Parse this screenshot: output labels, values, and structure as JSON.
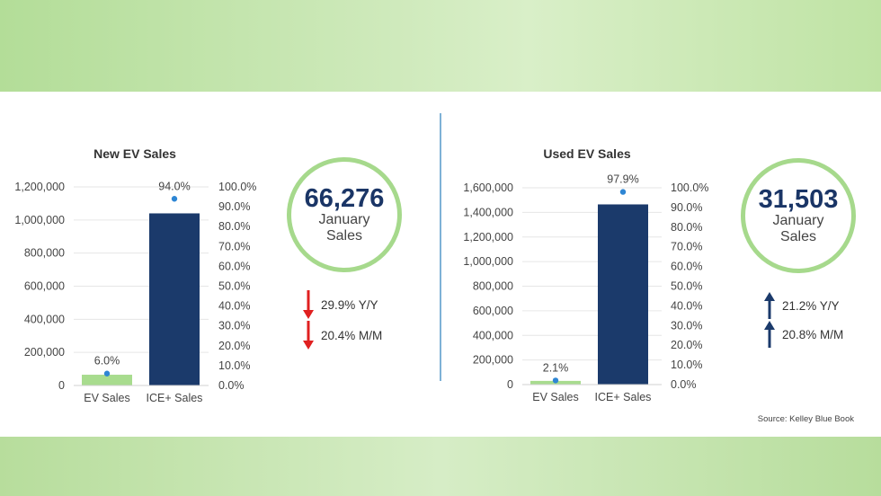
{
  "chart_data": [
    {
      "type": "bar",
      "title": "New EV Sales",
      "categories": [
        "EV Sales",
        "ICE+ Sales"
      ],
      "values": [
        65000,
        1040000
      ],
      "share_values": [
        6.0,
        94.0
      ],
      "share_labels": [
        "6.0%",
        "94.0%"
      ],
      "ylim": [
        0,
        1200000
      ],
      "y_ticks": [
        0,
        200000,
        400000,
        600000,
        800000,
        1000000,
        1200000
      ],
      "y_tick_labels": [
        "0",
        "200,000",
        "400,000",
        "600,000",
        "800,000",
        "1,000,000",
        "1,200,000"
      ],
      "y2lim": [
        0,
        100
      ],
      "y2_tick_labels": [
        "0.0%",
        "10.0%",
        "20.0%",
        "30.0%",
        "40.0%",
        "50.0%",
        "60.0%",
        "70.0%",
        "80.0%",
        "90.0%",
        "100.0%"
      ],
      "bar_colors": [
        "#a8dc8e",
        "#1b3a6b"
      ],
      "marker_color": "#2e86d4",
      "grid": true
    },
    {
      "type": "bar",
      "title": "Used EV Sales",
      "categories": [
        "EV Sales",
        "ICE+ Sales"
      ],
      "values": [
        30000,
        1465000
      ],
      "share_values": [
        2.1,
        97.9
      ],
      "share_labels": [
        "2.1%",
        "97.9%"
      ],
      "ylim": [
        0,
        1600000
      ],
      "y_ticks": [
        0,
        200000,
        400000,
        600000,
        800000,
        1000000,
        1200000,
        1400000,
        1600000
      ],
      "y_tick_labels": [
        "0",
        "200,000",
        "400,000",
        "600,000",
        "800,000",
        "1,000,000",
        "1,200,000",
        "1,400,000",
        "1,600,000"
      ],
      "y2lim": [
        0,
        100
      ],
      "y2_tick_labels": [
        "0.0%",
        "10.0%",
        "20.0%",
        "30.0%",
        "40.0%",
        "50.0%",
        "60.0%",
        "70.0%",
        "80.0%",
        "90.0%",
        "100.0%"
      ],
      "bar_colors": [
        "#a8dc8e",
        "#1b3a6b"
      ],
      "marker_color": "#2e86d4",
      "grid": true
    }
  ],
  "kpis": [
    {
      "number": "66,276",
      "line1": "January",
      "line2": "Sales",
      "changes": [
        {
          "direction": "down",
          "text": "29.9% Y/Y",
          "icon": "arrow-down-icon",
          "color": "#e02020"
        },
        {
          "direction": "down",
          "text": "20.4% M/M",
          "icon": "arrow-down-icon",
          "color": "#e02020"
        }
      ]
    },
    {
      "number": "31,503",
      "line1": "January",
      "line2": "Sales",
      "changes": [
        {
          "direction": "up",
          "text": "21.2% Y/Y",
          "icon": "arrow-up-icon",
          "color": "#1b3a6b"
        },
        {
          "direction": "up",
          "text": "20.8% M/M",
          "icon": "arrow-up-icon",
          "color": "#1b3a6b"
        }
      ]
    }
  ],
  "source": "Source: Kelley Blue Book"
}
